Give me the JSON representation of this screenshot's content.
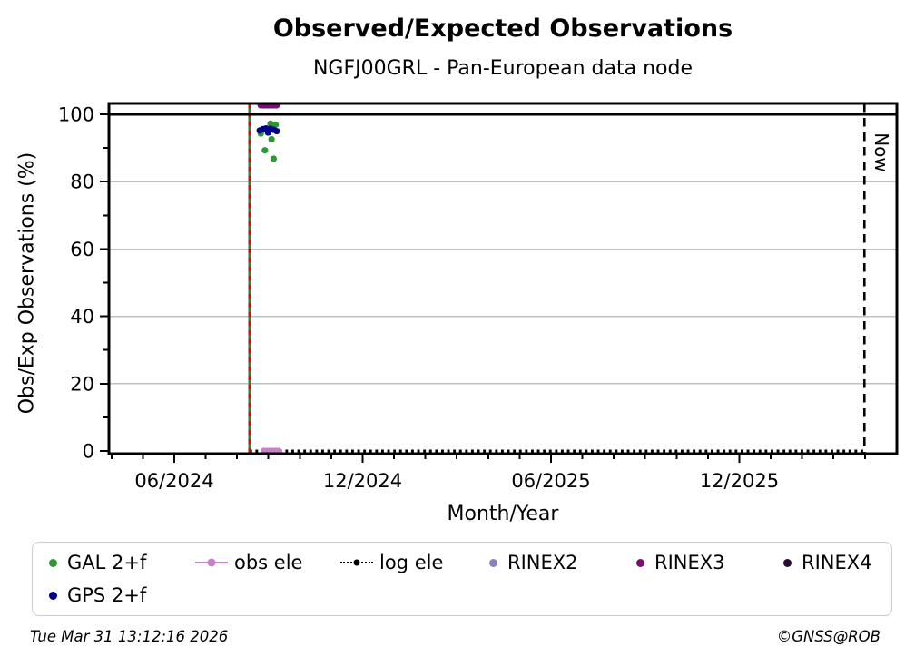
{
  "header": {
    "title": "Observed/Expected Observations",
    "subtitle": "NGFJ00GRL - Pan-European data node"
  },
  "footer": {
    "timestamp": "Tue Mar 31 13:12:16 2026",
    "credit": "©GNSS@ROB"
  },
  "chart_data": {
    "type": "scatter",
    "title": "Observed/Expected Observations",
    "subtitle": "NGFJ00GRL - Pan-European data node",
    "xlabel": "Month/Year",
    "ylabel": "Obs/Exp Observations (%)",
    "x_axis": {
      "ticks": [
        {
          "label": "06/2024",
          "date": "2024-06-01"
        },
        {
          "label": "12/2024",
          "date": "2024-12-01"
        },
        {
          "label": "06/2025",
          "date": "2025-06-01"
        },
        {
          "label": "12/2025",
          "date": "2025-12-01"
        }
      ],
      "minor_tick_interval": "1 month",
      "range_dates": [
        "2024-03-29",
        "2026-05-02"
      ]
    },
    "y_axis": {
      "ticks": [
        0,
        20,
        40,
        60,
        80,
        100
      ],
      "minor_ticks": [
        10,
        30,
        50,
        70,
        90
      ],
      "range": [
        -1,
        103.3
      ],
      "grid_values": [
        20,
        40,
        60,
        80
      ],
      "grid_color": "#c0c0c0"
    },
    "series": [
      {
        "name": "GAL 2+f",
        "color": "#2E9632",
        "marker": "dot",
        "points": [
          {
            "date": "2024-09-03",
            "value": 97.2
          },
          {
            "date": "2024-09-08",
            "value": 96.9
          },
          {
            "date": "2024-08-24",
            "value": 94.3
          },
          {
            "date": "2024-09-04",
            "value": 92.6
          },
          {
            "date": "2024-08-28",
            "value": 89.3
          },
          {
            "date": "2024-09-06",
            "value": 86.8
          }
        ]
      },
      {
        "name": "obs ele",
        "color": "#C97FC9",
        "marker": "line-dot",
        "points": [
          {
            "date": "2024-08-27",
            "value": 0
          },
          {
            "date": "2024-08-30",
            "value": 0
          },
          {
            "date": "2024-09-02",
            "value": 0
          },
          {
            "date": "2024-09-05",
            "value": 0
          },
          {
            "date": "2024-09-08",
            "value": 0
          },
          {
            "date": "2024-09-11",
            "value": 0
          }
        ]
      },
      {
        "name": "log ele",
        "color": "#000000",
        "marker": "dotted-line",
        "line": {
          "from": "2024-08-13",
          "to": "2026-03-31",
          "value": 0
        },
        "points": []
      },
      {
        "name": "RINEX2",
        "color": "#8D7FC7",
        "marker": "dot",
        "points": []
      },
      {
        "name": "RINEX3",
        "color": "#7A0D72",
        "marker": "dot",
        "points": [
          {
            "date": "2024-08-24",
            "value": 102.7
          },
          {
            "date": "2024-08-26",
            "value": 102.7
          },
          {
            "date": "2024-08-28",
            "value": 102.7
          },
          {
            "date": "2024-08-30",
            "value": 102.7
          },
          {
            "date": "2024-09-01",
            "value": 102.7
          },
          {
            "date": "2024-09-03",
            "value": 102.7
          },
          {
            "date": "2024-09-05",
            "value": 102.7
          },
          {
            "date": "2024-09-07",
            "value": 102.7
          },
          {
            "date": "2024-09-09",
            "value": 102.7
          }
        ]
      },
      {
        "name": "RINEX4",
        "color": "#2A0934",
        "marker": "dot",
        "points": []
      },
      {
        "name": "GPS 2+f",
        "color": "#00008B",
        "marker": "dot",
        "points": [
          {
            "date": "2024-08-23",
            "value": 95.2
          },
          {
            "date": "2024-08-26",
            "value": 95.6
          },
          {
            "date": "2024-08-29",
            "value": 95.8
          },
          {
            "date": "2024-09-01",
            "value": 95.3
          },
          {
            "date": "2024-09-03",
            "value": 95.7
          },
          {
            "date": "2024-09-06",
            "value": 95.4
          },
          {
            "date": "2024-09-09",
            "value": 95.0
          },
          {
            "date": "2024-08-31",
            "value": 94.6
          }
        ]
      }
    ],
    "annotations": {
      "ref_line_100": {
        "value": 100,
        "style": "solid",
        "color": "#000000"
      },
      "now_line": {
        "date": "2026-03-31",
        "label": "Now",
        "style": "dashed",
        "color": "#000000"
      },
      "event_line": {
        "date": "2024-08-13",
        "style": "solid+dashed",
        "colors": [
          "#228B22",
          "#CC1111"
        ]
      }
    },
    "legend": {
      "position": "bottom",
      "rows": [
        [
          "GAL 2+f",
          "obs ele",
          "log ele",
          "RINEX2",
          "RINEX3",
          "RINEX4"
        ],
        [
          "GPS 2+f"
        ]
      ]
    }
  }
}
